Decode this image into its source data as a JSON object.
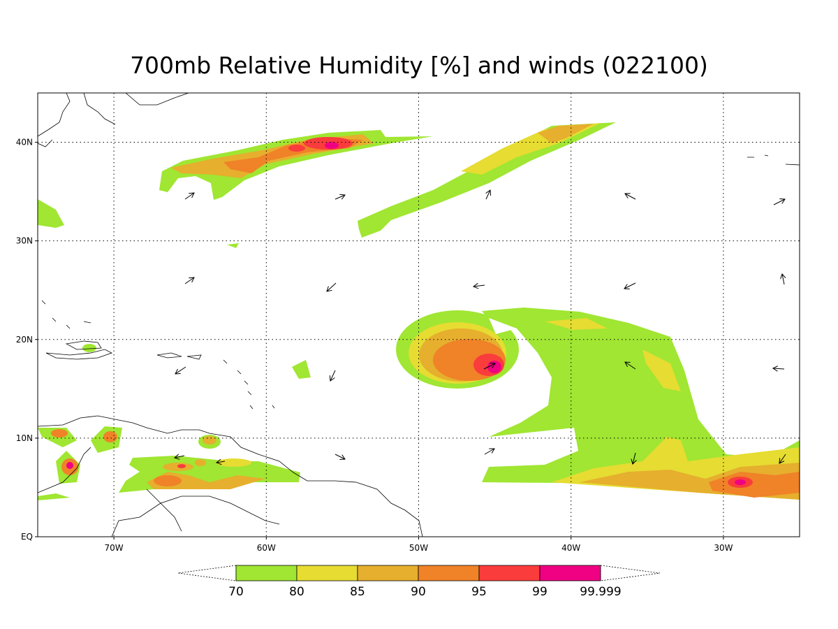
{
  "title": "700mb Relative Humidity [%] and winds (022100)",
  "lonlim": [
    -75,
    -25
  ],
  "latlim": [
    0,
    45
  ],
  "lat_ticks": [
    {
      "value": 0,
      "label": "EQ"
    },
    {
      "value": 10,
      "label": "10N"
    },
    {
      "value": 20,
      "label": "20N"
    },
    {
      "value": 30,
      "label": "30N"
    },
    {
      "value": 40,
      "label": "40N"
    }
  ],
  "lon_ticks": [
    {
      "value": -70,
      "label": "70W"
    },
    {
      "value": -60,
      "label": "60W"
    },
    {
      "value": -50,
      "label": "50W"
    },
    {
      "value": -40,
      "label": "40W"
    },
    {
      "value": -30,
      "label": "30W"
    }
  ],
  "colorbar": {
    "levels": [
      70,
      80,
      85,
      90,
      95,
      99,
      99.999
    ],
    "colors": [
      "#a0e632",
      "#e6dc32",
      "#e6af2d",
      "#f08228",
      "#fa3c3c",
      "#f00082"
    ]
  }
}
